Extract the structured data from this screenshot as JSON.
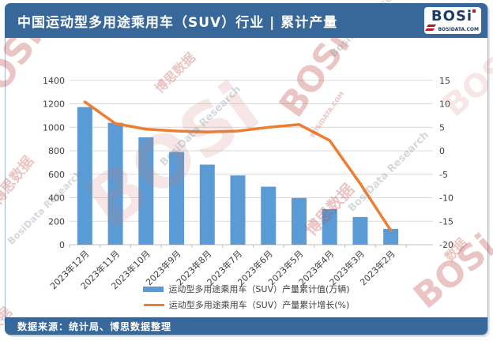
{
  "header": {
    "title": "中国运动型多用途乘用车（SUV）行业 | 累计产量",
    "logo": {
      "brand": "BOSi",
      "domain": "BOSIDATA.COM"
    }
  },
  "footer": {
    "source": "数据来源：统计局、博思数据整理"
  },
  "watermarks": {
    "brand": "BOSi",
    "brand_cn": "博思数据",
    "research": "BosiData Research",
    "domain": "BOSIDATA.COM",
    "data_cn": "数据"
  },
  "colors": {
    "header_bg": "#38689A",
    "frame_border": "#9FB6C9",
    "bar": "#5B9BD5",
    "line": "#ED7D31",
    "gridline": "#D9D9D9",
    "axis_line": "#BFBFBF",
    "axis_text": "#404040"
  },
  "chart_data": {
    "type": "bar",
    "subtype": "bar+line combo, dual axis",
    "categories": [
      "2023年12月",
      "2023年11月",
      "2023年10月",
      "2023年9月",
      "2023年8月",
      "2023年7月",
      "2023年6月",
      "2023年5月",
      "2023年4月",
      "2023年3月",
      "2023年2月"
    ],
    "series": [
      {
        "name": "运动型多用途乘用车（SUV）产量累计值(万辆)",
        "type": "bar",
        "axis": "left",
        "color": "#5B9BD5",
        "values": [
          1172,
          1038,
          915,
          790,
          682,
          590,
          494,
          398,
          303,
          236,
          135
        ]
      },
      {
        "name": "运动型多用途乘用车（SUV）产量累计增长(%)",
        "type": "line",
        "axis": "right",
        "color": "#ED7D31",
        "values": [
          10.4,
          5.8,
          4.6,
          4.2,
          4.0,
          4.2,
          5.0,
          5.6,
          2.2,
          -7.0,
          -17.0
        ]
      }
    ],
    "left_axis": {
      "min": 0,
      "max": 1400,
      "step": 200
    },
    "right_axis": {
      "min": -20,
      "max": 15,
      "step": 5
    },
    "grid": true,
    "legend_position": "bottom"
  }
}
